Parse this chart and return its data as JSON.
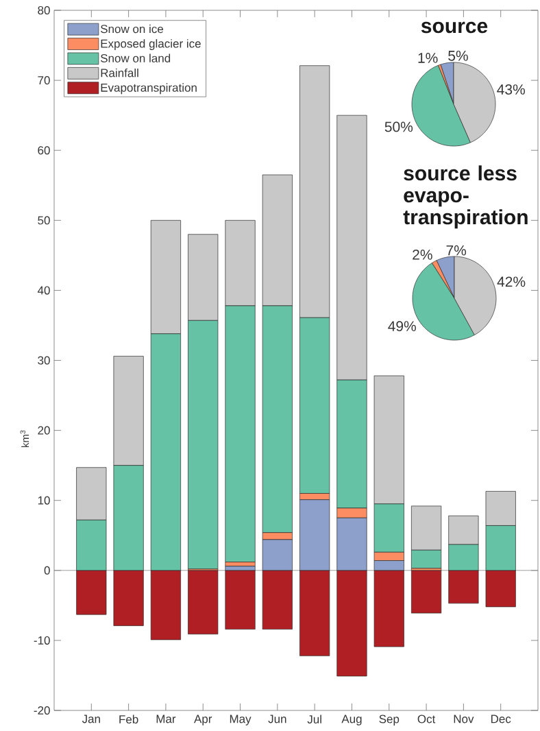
{
  "chart_data": [
    {
      "type": "bar",
      "stacked": true,
      "categories": [
        "Jan",
        "Feb",
        "Mar",
        "Apr",
        "May",
        "Jun",
        "Jul",
        "Aug",
        "Sep",
        "Oct",
        "Nov",
        "Dec"
      ],
      "ylabel": "km$^{3}$",
      "ylim": [
        -20,
        80
      ],
      "yticks": [
        -20,
        -10,
        0,
        10,
        20,
        30,
        40,
        50,
        60,
        70,
        80
      ],
      "legend": "top left",
      "series": [
        {
          "name": "Snow on ice",
          "color": "#8da0cb",
          "values": [
            0,
            0,
            0,
            0,
            0.6,
            4.4,
            10.1,
            7.5,
            1.4,
            0,
            0,
            0
          ]
        },
        {
          "name": "Exposed glacier ice",
          "color": "#fc8d62",
          "values": [
            0,
            0,
            0,
            0.2,
            0.6,
            1.0,
            0.9,
            1.4,
            1.2,
            0.3,
            0,
            0
          ]
        },
        {
          "name": "Snow on land",
          "color": "#66c2a5",
          "values": [
            7.2,
            15.0,
            33.8,
            35.5,
            36.6,
            32.4,
            25.1,
            18.3,
            6.9,
            2.6,
            3.7,
            6.4
          ]
        },
        {
          "name": "Rainfall",
          "color": "#c8c8c8",
          "values": [
            7.5,
            15.6,
            16.2,
            12.3,
            12.2,
            18.7,
            36.0,
            37.8,
            18.3,
            6.3,
            4.1,
            4.9
          ]
        },
        {
          "name": "Evapotranspiration",
          "color": "#b01f24",
          "values": [
            -6.3,
            -7.9,
            -9.9,
            -9.1,
            -8.4,
            -8.4,
            -12.2,
            -15.1,
            -10.9,
            -6.1,
            -4.7,
            -5.2
          ]
        }
      ],
      "ref_lines": [
        {
          "axis": "y",
          "value": 0,
          "color": "#888888"
        }
      ]
    },
    {
      "type": "pie",
      "title": "source",
      "categories": [
        null,
        null,
        null,
        null
      ],
      "values": [
        5,
        1,
        50,
        43
      ],
      "colors": [
        "#8da0cb",
        "#fc8d62",
        "#66c2a5",
        "#c8c8c8"
      ],
      "value_labels": [
        "5%",
        "1%",
        "50%",
        "43%"
      ]
    },
    {
      "type": "pie",
      "title": "source less evapo-transpiration",
      "categories": [
        null,
        null,
        null,
        null
      ],
      "values": [
        7,
        2,
        49,
        42
      ],
      "colors": [
        "#8da0cb",
        "#fc8d62",
        "#66c2a5",
        "#c8c8c8"
      ],
      "value_labels": [
        "7%",
        "2%",
        "49%",
        "42%"
      ]
    }
  ]
}
